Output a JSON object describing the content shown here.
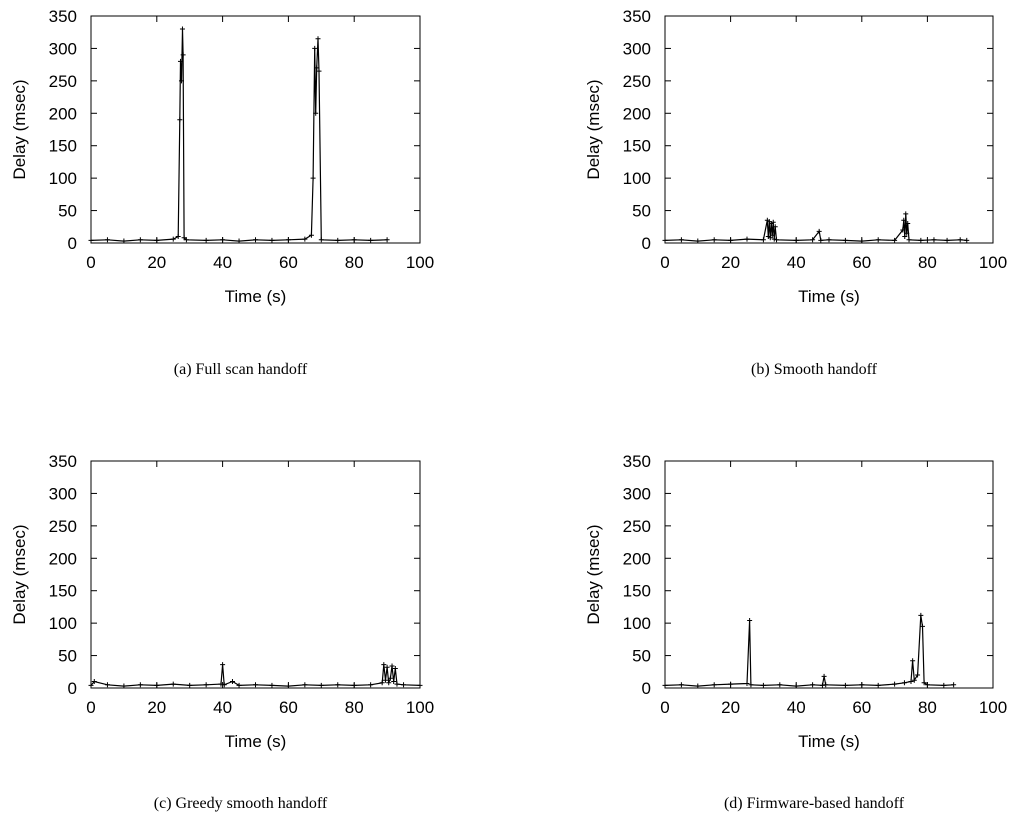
{
  "chart_data": [
    {
      "type": "line",
      "caption": "(a) Full scan handoff",
      "xlabel": "Time (s)",
      "ylabel": "Delay (msec)",
      "xlim": [
        0,
        100
      ],
      "ylim": [
        0,
        350
      ],
      "xticks": [
        0,
        20,
        40,
        60,
        80,
        100
      ],
      "yticks": [
        0,
        50,
        100,
        150,
        200,
        250,
        300,
        350
      ],
      "grid": false,
      "legend": "none",
      "series": [
        {
          "x": [
            0,
            5,
            10,
            15,
            20,
            25,
            26.5,
            27,
            27.2,
            27.5,
            27.8,
            28.0,
            28.3,
            29,
            35,
            40,
            45,
            50,
            55,
            60,
            65,
            67,
            67.5,
            68,
            68.3,
            68.6,
            69,
            69.3,
            70,
            75,
            80,
            85,
            90
          ],
          "y": [
            4,
            5,
            3,
            5,
            4,
            6,
            10,
            190,
            280,
            250,
            330,
            290,
            8,
            5,
            4,
            5,
            3,
            5,
            4,
            5,
            6,
            12,
            100,
            300,
            200,
            270,
            315,
            265,
            5,
            4,
            5,
            4,
            5
          ]
        }
      ]
    },
    {
      "type": "line",
      "caption": "(b) Smooth handoff",
      "xlabel": "Time (s)",
      "ylabel": "Delay (msec)",
      "xlim": [
        0,
        100
      ],
      "ylim": [
        0,
        350
      ],
      "xticks": [
        0,
        20,
        40,
        60,
        80,
        100
      ],
      "yticks": [
        0,
        50,
        100,
        150,
        200,
        250,
        300,
        350
      ],
      "grid": false,
      "legend": "none",
      "series": [
        {
          "x": [
            0,
            5,
            10,
            15,
            20,
            25,
            30,
            31.2,
            31.5,
            31.8,
            32.1,
            32.4,
            32.7,
            33.0,
            33.3,
            33.6,
            34,
            40,
            45,
            47,
            47.5,
            50,
            55,
            60,
            65,
            70,
            72.5,
            72.8,
            73.1,
            73.4,
            73.7,
            74.0,
            74.4,
            78,
            82,
            86,
            90,
            92
          ],
          "y": [
            4,
            5,
            3,
            5,
            4,
            6,
            5,
            35,
            10,
            33,
            8,
            30,
            12,
            32,
            6,
            25,
            5,
            4,
            5,
            18,
            4,
            5,
            4,
            3,
            5,
            4,
            20,
            35,
            10,
            45,
            15,
            30,
            5,
            4,
            5,
            4,
            5,
            4
          ]
        }
      ]
    },
    {
      "type": "line",
      "caption": "(c) Greedy smooth handoff",
      "xlabel": "Time (s)",
      "ylabel": "Delay (msec)",
      "xlim": [
        0,
        100
      ],
      "ylim": [
        0,
        350
      ],
      "xticks": [
        0,
        20,
        40,
        60,
        80,
        100
      ],
      "yticks": [
        0,
        50,
        100,
        150,
        200,
        250,
        300,
        350
      ],
      "grid": false,
      "legend": "none",
      "series": [
        {
          "x": [
            0,
            1,
            5,
            10,
            15,
            20,
            25,
            30,
            35,
            39.5,
            40,
            40.5,
            43,
            45,
            50,
            55,
            60,
            65,
            70,
            75,
            80,
            85,
            88.5,
            89,
            89.5,
            90,
            90.5,
            91,
            91.5,
            92,
            92.5,
            93,
            95,
            100
          ],
          "y": [
            4,
            10,
            5,
            3,
            5,
            4,
            6,
            4,
            5,
            6,
            36,
            5,
            10,
            4,
            5,
            4,
            3,
            5,
            4,
            5,
            4,
            5,
            8,
            36,
            12,
            32,
            8,
            15,
            34,
            10,
            30,
            6,
            5,
            4
          ]
        }
      ]
    },
    {
      "type": "line",
      "caption": "(d) Firmware-based handoff",
      "xlabel": "Time (s)",
      "ylabel": "Delay (msec)",
      "xlim": [
        0,
        100
      ],
      "ylim": [
        0,
        350
      ],
      "xticks": [
        0,
        20,
        40,
        60,
        80,
        100
      ],
      "yticks": [
        0,
        50,
        100,
        150,
        200,
        250,
        300,
        350
      ],
      "grid": false,
      "legend": "none",
      "series": [
        {
          "x": [
            0,
            5,
            10,
            15,
            20,
            25,
            25.8,
            26.2,
            30,
            35,
            40,
            45,
            48,
            48.5,
            49,
            55,
            60,
            65,
            70,
            73,
            75,
            75.5,
            76,
            77,
            78,
            78.5,
            79,
            80,
            85,
            88
          ],
          "y": [
            4,
            5,
            3,
            5,
            6,
            7,
            104,
            5,
            4,
            5,
            3,
            5,
            4,
            18,
            5,
            4,
            5,
            4,
            6,
            8,
            10,
            42,
            12,
            20,
            112,
            95,
            8,
            5,
            4,
            5
          ]
        }
      ]
    }
  ]
}
